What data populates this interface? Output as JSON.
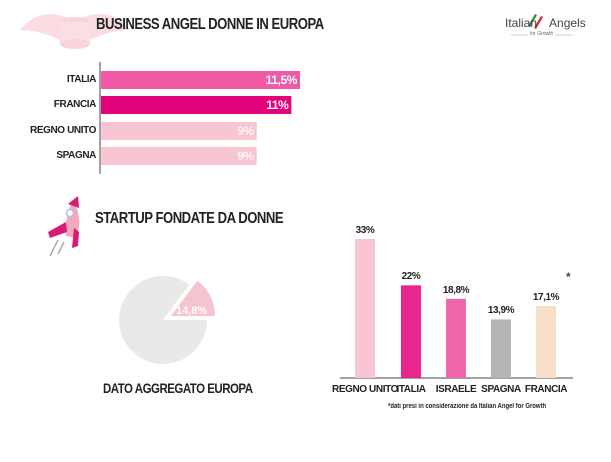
{
  "header": {
    "logo": {
      "text_left": "Italian",
      "text_right": "Angels",
      "sub": "for Growth"
    }
  },
  "chart_data": [
    {
      "type": "bar",
      "orientation": "horizontal",
      "title": "BUSINESS ANGEL DONNE IN EUROPA",
      "categories": [
        "ITALIA",
        "FRANCIA",
        "REGNO UNITO",
        "SPAGNA"
      ],
      "values": [
        11.5,
        11,
        9,
        9
      ],
      "value_labels": [
        "11,5%",
        "11%",
        "9%",
        "9%"
      ],
      "colors": [
        "#ee5aa6",
        "#e2037b",
        "#f7c6d2",
        "#f7c6d2"
      ],
      "xlim": [
        0,
        12
      ],
      "grid": false
    },
    {
      "type": "pie",
      "title": "STARTUP FONDATE DA DONNE",
      "caption": "DATO AGGREGATO EUROPA",
      "values": [
        14.8,
        85.2
      ],
      "value_labels": [
        "14,8%"
      ],
      "colors": [
        "#f6c4cf",
        "#e9e9e9"
      ]
    },
    {
      "type": "bar",
      "orientation": "vertical",
      "categories": [
        "REGNO UNITO",
        "ITALIA",
        "ISRAELE",
        "SPAGNA",
        "FRANCIA"
      ],
      "values": [
        33,
        22,
        18.8,
        13.9,
        17.1
      ],
      "value_labels": [
        "33%",
        "22%",
        "18,8%",
        "13,9%",
        "17,1%"
      ],
      "colors": [
        "#f7c6d2",
        "#e8268d",
        "#ef66ad",
        "#b5b5b5",
        "#f8e0c8"
      ],
      "ylim": [
        0,
        35
      ],
      "asterisk": "*",
      "footnote": "*dati presi in considerazione da Italian Angel for Growth",
      "grid": false
    }
  ]
}
